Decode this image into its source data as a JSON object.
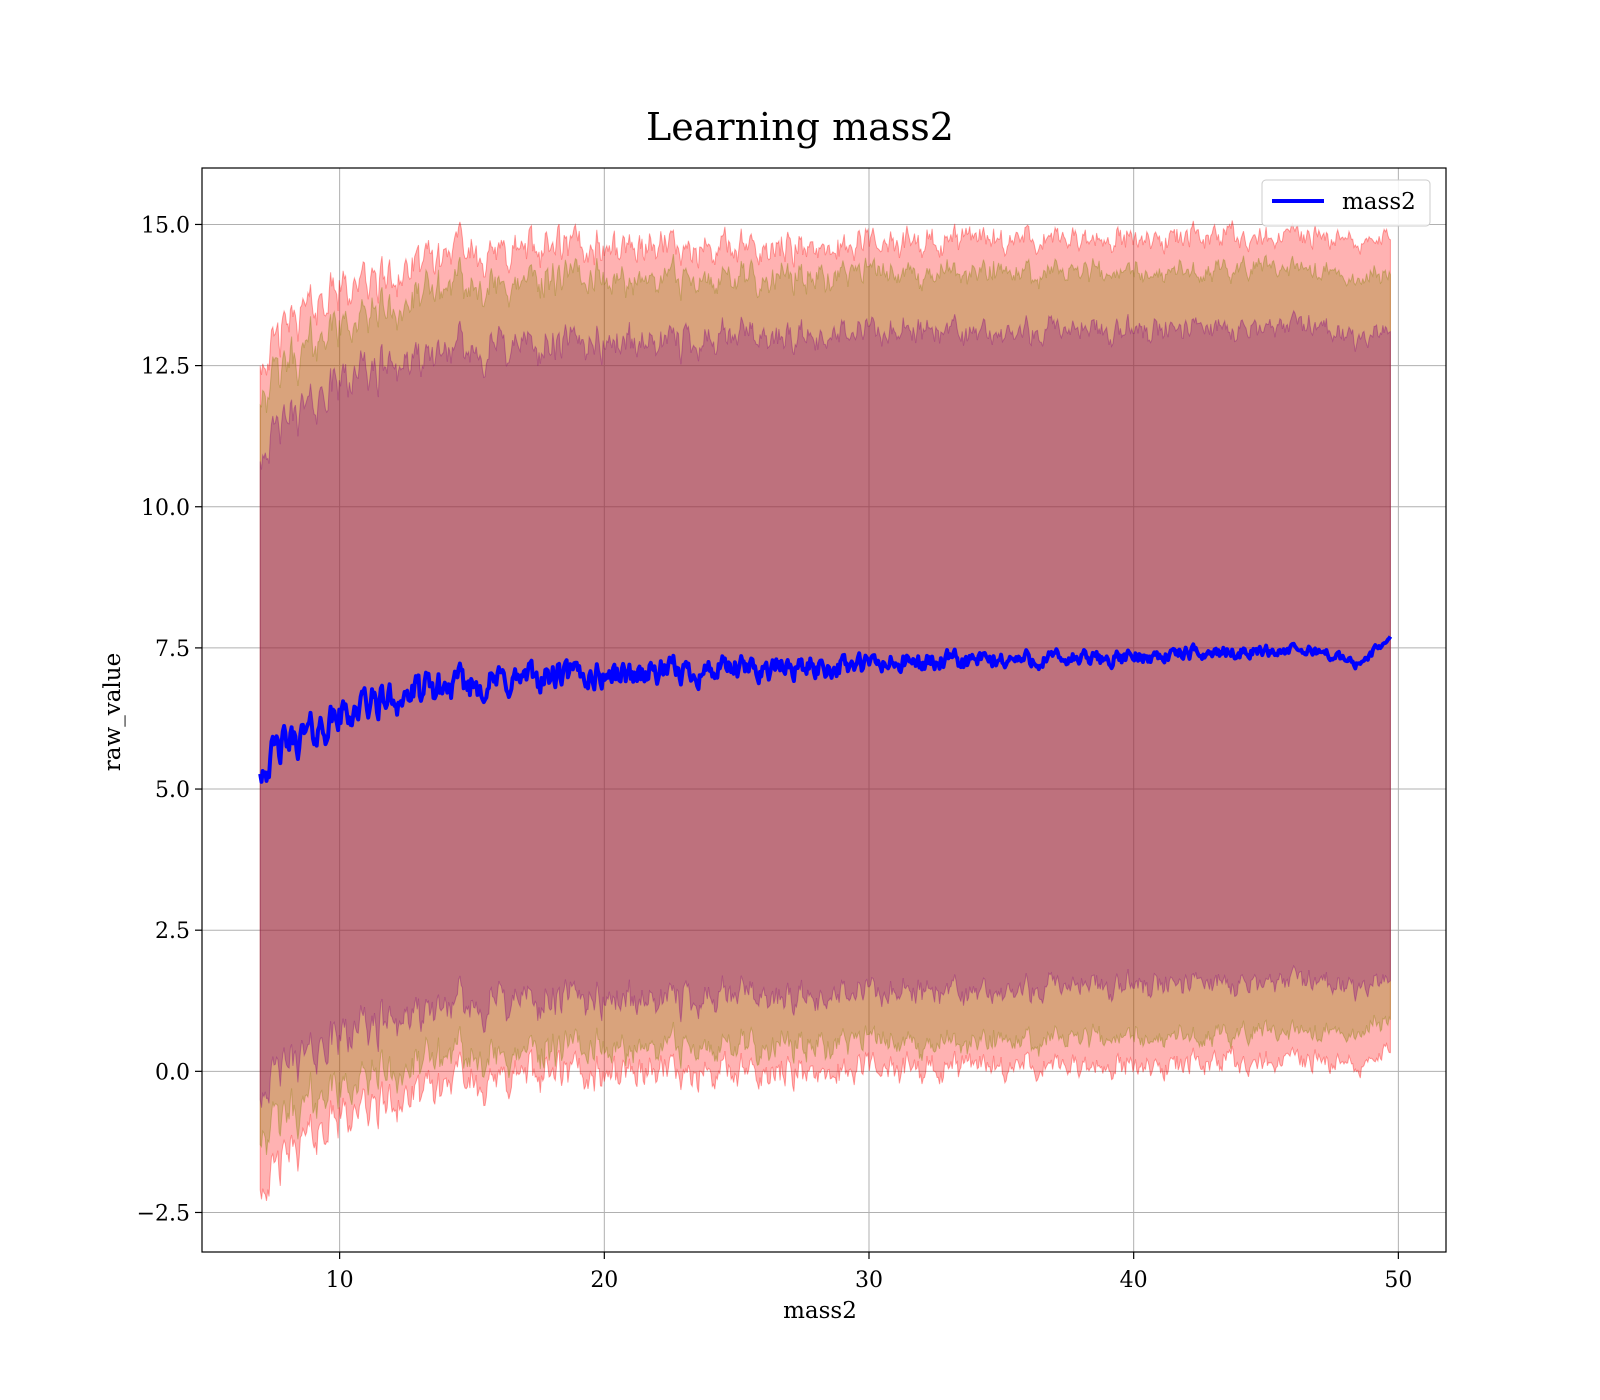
{
  "chart_data": {
    "type": "area",
    "title": "Learning mass2",
    "xlabel": "mass2",
    "ylabel": "raw_value",
    "xlim": [
      4.8,
      51.8
    ],
    "ylim": [
      -3.2,
      16.0
    ],
    "x_ticks": [
      10,
      20,
      30,
      40,
      50
    ],
    "y_ticks": [
      -2.5,
      0.0,
      2.5,
      5.0,
      7.5,
      10.0,
      12.5,
      15.0
    ],
    "x_tick_labels": [
      "10",
      "20",
      "30",
      "40",
      "50"
    ],
    "y_tick_labels": [
      "−2.5",
      "0.0",
      "2.5",
      "5.0",
      "7.5",
      "10.0",
      "12.5",
      "15.0"
    ],
    "grid": true,
    "legend": {
      "placement": "top-right",
      "entries": [
        "mass2"
      ]
    },
    "x_range": [
      7.0,
      49.7
    ],
    "series": [
      {
        "name": "mass2",
        "color": "#0000ff",
        "x": [
          7.0,
          8.0,
          9.0,
          10.0,
          11.0,
          12.0,
          13.0,
          14.0,
          15.0,
          17.0,
          19.0,
          21.0,
          24.0,
          27.0,
          30.0,
          33.0,
          36.0,
          39.0,
          42.0,
          45.0,
          47.0,
          48.5,
          49.7
        ],
        "mean": [
          5.4,
          5.8,
          6.0,
          6.3,
          6.5,
          6.6,
          6.7,
          6.8,
          6.85,
          6.95,
          7.0,
          7.05,
          7.1,
          7.15,
          7.2,
          7.25,
          7.3,
          7.3,
          7.4,
          7.45,
          7.45,
          7.2,
          7.7
        ]
      }
    ],
    "bands": [
      {
        "color": "#ff0000",
        "lower": [
          -1.9,
          -1.5,
          -1.1,
          -0.85,
          -0.65,
          -0.5,
          -0.4,
          -0.3,
          -0.2,
          -0.1,
          -0.05,
          0.0,
          0.0,
          0.0,
          0.05,
          0.05,
          0.1,
          0.1,
          0.15,
          0.2,
          0.2,
          0.0,
          0.5
        ],
        "upper": [
          12.7,
          13.2,
          13.6,
          13.8,
          14.0,
          14.1,
          14.3,
          14.4,
          14.5,
          14.5,
          14.6,
          14.6,
          14.6,
          14.6,
          14.65,
          14.7,
          14.75,
          14.75,
          14.8,
          14.8,
          14.8,
          14.6,
          14.9
        ]
      },
      {
        "color": "#808000",
        "lower": [
          -1.1,
          -0.8,
          -0.5,
          -0.3,
          -0.1,
          0.0,
          0.1,
          0.2,
          0.25,
          0.3,
          0.35,
          0.4,
          0.45,
          0.45,
          0.5,
          0.5,
          0.55,
          0.6,
          0.65,
          0.7,
          0.75,
          0.65,
          1.0
        ],
        "upper": [
          12.0,
          12.5,
          12.9,
          13.2,
          13.4,
          13.5,
          13.7,
          13.8,
          13.9,
          13.95,
          14.0,
          14.0,
          14.05,
          14.05,
          14.1,
          14.15,
          14.15,
          14.15,
          14.2,
          14.25,
          14.25,
          14.0,
          14.2
        ]
      },
      {
        "color": "#800080",
        "lower": [
          -0.3,
          0.1,
          0.4,
          0.6,
          0.8,
          0.9,
          1.0,
          1.1,
          1.15,
          1.2,
          1.25,
          1.25,
          1.3,
          1.3,
          1.35,
          1.4,
          1.45,
          1.5,
          1.55,
          1.6,
          1.6,
          1.4,
          1.7
        ],
        "upper": [
          11.0,
          11.5,
          11.9,
          12.2,
          12.4,
          12.5,
          12.6,
          12.7,
          12.75,
          12.8,
          12.85,
          12.9,
          12.95,
          13.0,
          13.05,
          13.1,
          13.1,
          13.1,
          13.15,
          13.2,
          13.2,
          12.9,
          13.2
        ]
      }
    ]
  }
}
